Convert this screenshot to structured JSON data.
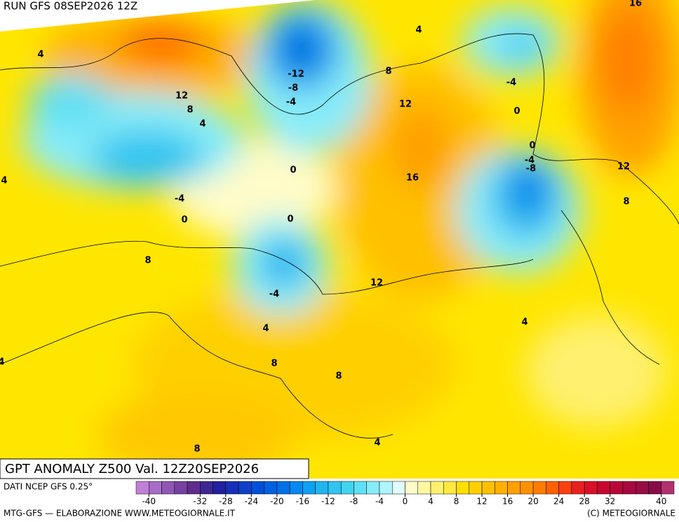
{
  "header": {
    "run": "RUN GFS 08SEP2026 12Z"
  },
  "map_title": "GPT ANOMALY Z500 Val. 12Z20SEP2026",
  "contour_labels": [
    4,
    12,
    8,
    4,
    -4,
    0,
    4,
    -12,
    -8,
    -4,
    0,
    0,
    -4,
    4,
    8,
    8,
    8,
    4,
    12,
    16,
    12,
    8,
    4,
    -4,
    0,
    0,
    -4,
    -8,
    12,
    8,
    16,
    4,
    8,
    4
  ],
  "colorbar": {
    "source": "DATI NCEP GFS 0.25°",
    "ticks": [
      -40,
      -32,
      -28,
      -24,
      -20,
      -16,
      -12,
      -8,
      -4,
      0,
      4,
      8,
      12,
      16,
      20,
      24,
      28,
      32,
      40
    ],
    "colors": [
      "#c080d8",
      "#a86cc8",
      "#9058b4",
      "#7840a0",
      "#602c8c",
      "#3c2890",
      "#2020a0",
      "#1830b8",
      "#1040c8",
      "#0050d8",
      "#0060e0",
      "#0070e8",
      "#0888f0",
      "#10a0f0",
      "#20b4f0",
      "#30c4f0",
      "#40d4f0",
      "#60e0f4",
      "#88ecf8",
      "#b0f4fc",
      "#e0fcfc",
      "#fffccc",
      "#fff8a0",
      "#fff070",
      "#ffe840",
      "#ffe000",
      "#ffd000",
      "#ffc000",
      "#ffb000",
      "#ffa000",
      "#ff9000",
      "#ff7c00",
      "#ff6000",
      "#f84010",
      "#e82020",
      "#d81028",
      "#c80830",
      "#b80838",
      "#a80840",
      "#980c44",
      "#880c48",
      "#b03070"
    ]
  },
  "footer": {
    "left": "MTG-GFS — ELABORAZIONE WWW.METEOGIORNALE.IT",
    "right": "(C) METEOGIORNALE"
  }
}
